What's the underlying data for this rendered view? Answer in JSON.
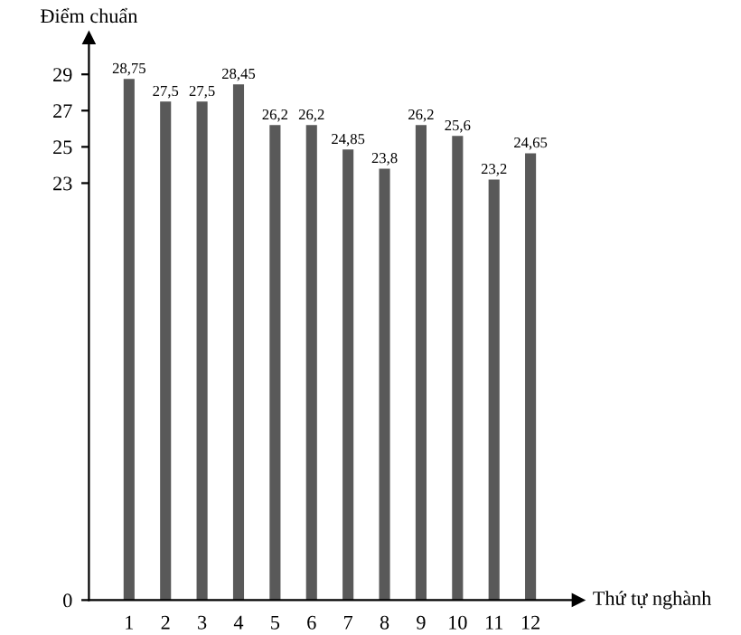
{
  "chart_data": {
    "type": "bar",
    "xlabel": "Thứ tự nghành",
    "ylabel": "Điểm chuẩn",
    "categories": [
      "1",
      "2",
      "3",
      "4",
      "5",
      "6",
      "7",
      "8",
      "9",
      "10",
      "11",
      "12"
    ],
    "values": [
      28.75,
      27.5,
      27.5,
      28.45,
      26.2,
      26.2,
      24.85,
      23.8,
      26.2,
      25.6,
      23.2,
      24.65
    ],
    "value_labels": [
      "28,75",
      "27,5",
      "27,5",
      "28,45",
      "26,2",
      "26,2",
      "24,85",
      "23,8",
      "26,2",
      "25,6",
      "23,2",
      "24,65"
    ],
    "color": "#595959",
    "ylim": [
      0,
      31
    ],
    "yticks": [
      0,
      23,
      25,
      27,
      29
    ],
    "grid": false
  }
}
